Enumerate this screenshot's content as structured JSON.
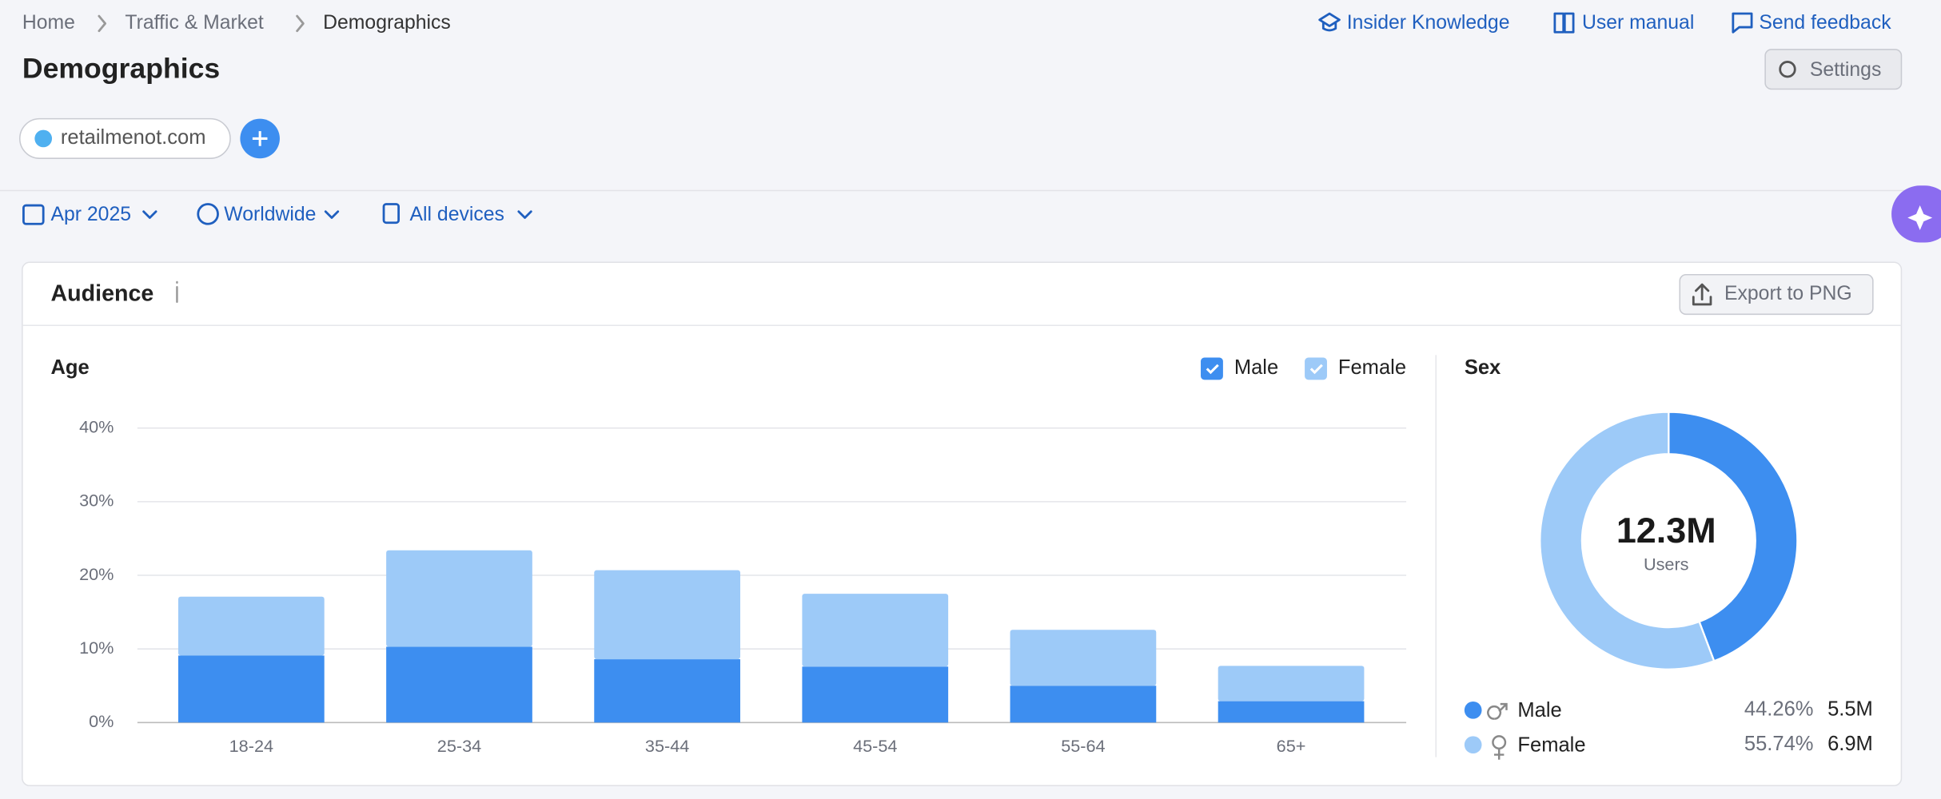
{
  "breadcrumbs": [
    "Home",
    "Traffic & Market",
    "Demographics"
  ],
  "header_links": [
    "Insider Knowledge",
    "User manual",
    "Send feedback"
  ],
  "title": "Demographics",
  "settings_button": "Settings",
  "domain": "retailmenot.com",
  "filters": [
    "Apr 2025",
    "Worldwide",
    "All devices"
  ],
  "card_title": "Audience",
  "export_button": "Export to PNG",
  "chart_data": [
    {
      "type": "bar",
      "stacked": true,
      "title": "Age",
      "categories": [
        "18-24",
        "25-34",
        "35-44",
        "45-54",
        "55-64",
        "65+"
      ],
      "series": [
        {
          "name": "Male",
          "color": "#3d8ef0",
          "values": [
            9.1,
            10.3,
            8.6,
            7.6,
            5.0,
            2.9
          ]
        },
        {
          "name": "Female",
          "color": "#9dcaf8",
          "values": [
            8.0,
            13.1,
            12.1,
            9.9,
            7.6,
            4.8
          ]
        }
      ],
      "ylim": [
        0,
        40
      ],
      "yticks": [
        {
          "value": 0,
          "label": "0%"
        },
        {
          "value": 10,
          "label": "10%"
        },
        {
          "value": 20,
          "label": "20%"
        },
        {
          "value": 30,
          "label": "30%"
        },
        {
          "value": 40,
          "label": "40%"
        }
      ],
      "grid": true
    },
    {
      "type": "pie",
      "donut": true,
      "title": "Sex",
      "categories": [
        "Male",
        "Female"
      ],
      "values": [
        44.26,
        55.74
      ],
      "value_labels": [
        "44.26%",
        "55.74%"
      ],
      "colors": [
        "#3d8ef0",
        "#9dcaf8"
      ],
      "counts": [
        "5.5M",
        "6.9M"
      ],
      "center_value": "12.3M",
      "center_label": "Users"
    }
  ]
}
